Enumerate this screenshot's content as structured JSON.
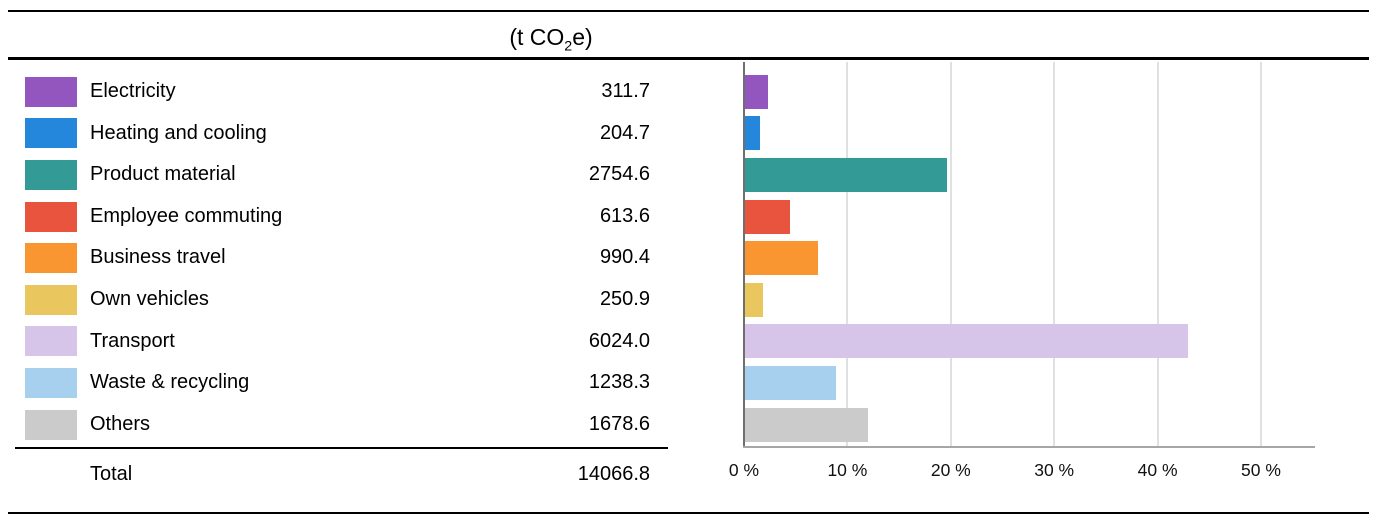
{
  "header": {
    "unit_prefix": "(t CO",
    "unit_sub": "2",
    "unit_suffix": "e)"
  },
  "table": {
    "rows": [
      {
        "label": "Electricity",
        "value": "311.7",
        "color": "#9256BE"
      },
      {
        "label": "Heating and cooling",
        "value": "204.7",
        "color": "#2487DB"
      },
      {
        "label": "Product material",
        "value": "2754.6",
        "color": "#339A95"
      },
      {
        "label": "Employee commuting",
        "value": "613.6",
        "color": "#E9543F"
      },
      {
        "label": "Business travel",
        "value": "990.4",
        "color": "#FA9632"
      },
      {
        "label": "Own vehicles",
        "value": "250.9",
        "color": "#EAC65E"
      },
      {
        "label": "Transport",
        "value": "6024.0",
        "color": "#D6C5E8"
      },
      {
        "label": "Waste & recycling",
        "value": "1238.3",
        "color": "#A6D0EE"
      },
      {
        "label": "Others",
        "value": "1678.6",
        "color": "#CCCBCB"
      }
    ],
    "total_label": "Total",
    "total_value": "14066.8"
  },
  "chart_data": {
    "type": "bar",
    "orientation": "horizontal",
    "title": "",
    "unit_header": "(t CO2e)",
    "categories": [
      "Electricity",
      "Heating and cooling",
      "Product material",
      "Employee commuting",
      "Business travel",
      "Own vehicles",
      "Transport",
      "Waste & recycling",
      "Others"
    ],
    "values": [
      311.7,
      204.7,
      2754.6,
      613.6,
      990.4,
      250.9,
      6024.0,
      1238.3,
      1678.6
    ],
    "total": 14066.8,
    "percentages": [
      2.2,
      1.5,
      19.6,
      4.4,
      7.0,
      1.8,
      42.8,
      8.8,
      11.9
    ],
    "bar_colors": [
      "#9256BE",
      "#2487DB",
      "#339A95",
      "#E9543F",
      "#FA9632",
      "#EAC65E",
      "#D6C5E8",
      "#A6D0EE",
      "#CCCBCB"
    ],
    "x_axis": {
      "tick_labels": [
        "0 %",
        "10 %",
        "20 %",
        "30 %",
        "40 %",
        "50 %"
      ],
      "tick_values": [
        0,
        10,
        20,
        30,
        40,
        50
      ],
      "xlim": [
        0,
        55.3
      ]
    },
    "grid": true,
    "legend_position": "left-table"
  },
  "style": {
    "grid_color": "#E0E0E0",
    "axis_color": "#6F6F6F",
    "baseline_color": "#A6A6A6",
    "border_color": "#000000",
    "text_color": "#000000"
  }
}
